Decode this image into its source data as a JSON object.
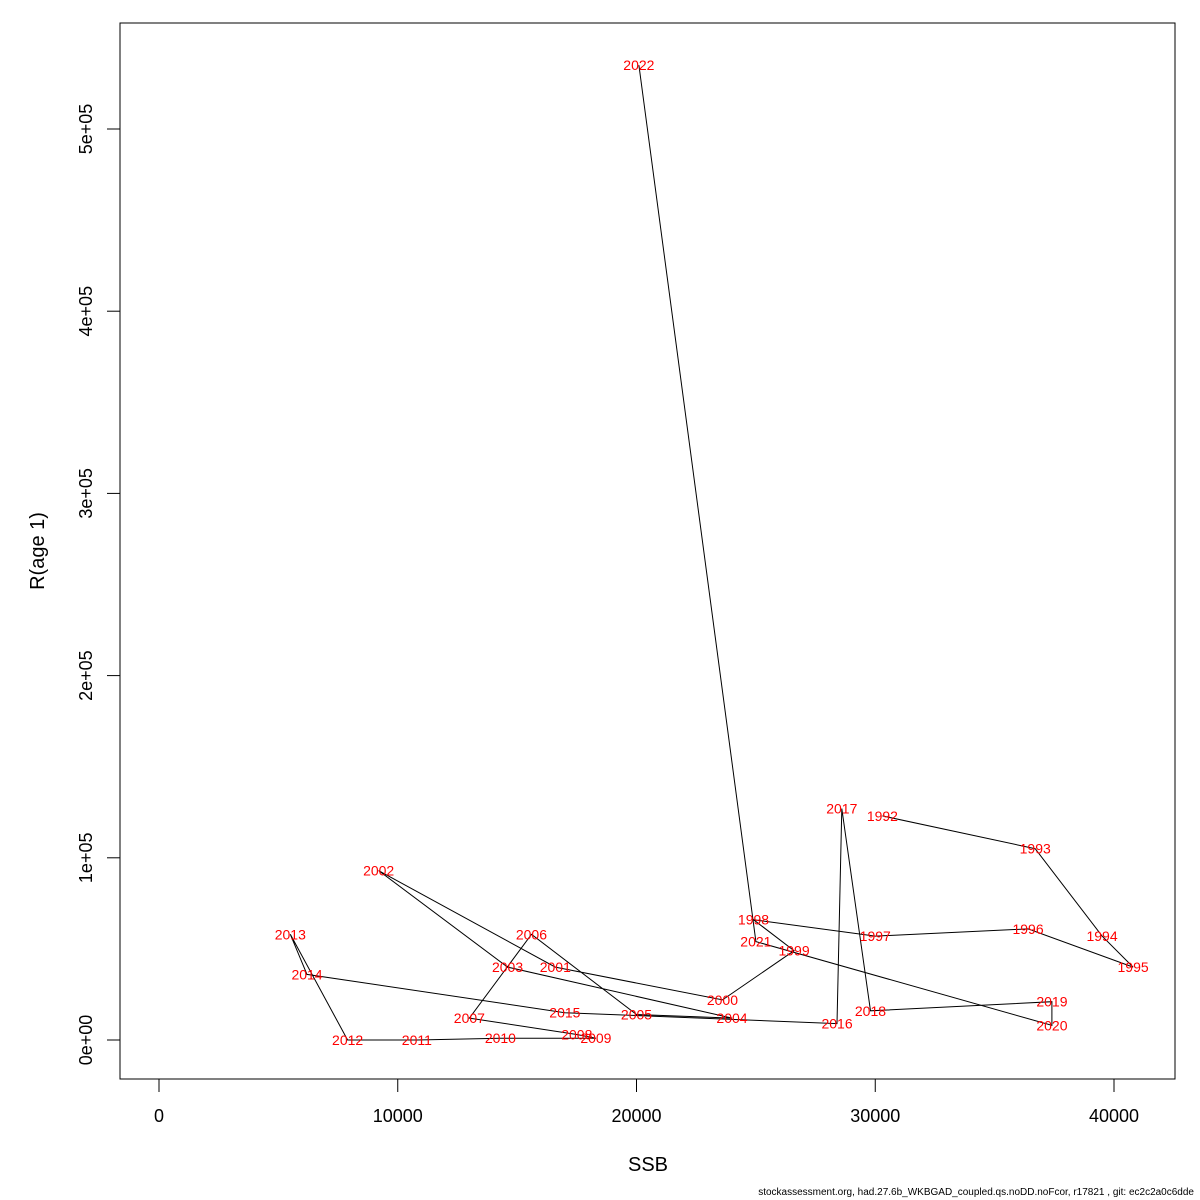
{
  "chart_data": {
    "type": "line",
    "title": "",
    "xlabel": "SSB",
    "ylabel": "R(age 1)",
    "xlim": [
      0,
      42000
    ],
    "ylim": [
      0,
      550000
    ],
    "x_ticks": [
      0,
      10000,
      20000,
      30000,
      40000
    ],
    "x_tick_labels": [
      "0",
      "10000",
      "20000",
      "30000",
      "40000"
    ],
    "y_ticks": [
      0,
      100000,
      200000,
      300000,
      400000,
      500000
    ],
    "y_tick_labels": [
      "0e+00",
      "1e+05",
      "2e+05",
      "3e+05",
      "4e+05",
      "5e+05"
    ],
    "grid": false,
    "line_color": "#000000",
    "label_color": "#ff0000",
    "points": [
      {
        "year": "1992",
        "ssb": 30300,
        "r": 123000
      },
      {
        "year": "1993",
        "ssb": 36700,
        "r": 105000
      },
      {
        "year": "1994",
        "ssb": 39500,
        "r": 57000
      },
      {
        "year": "1995",
        "ssb": 40800,
        "r": 40000
      },
      {
        "year": "1996",
        "ssb": 36400,
        "r": 61000
      },
      {
        "year": "1997",
        "ssb": 30000,
        "r": 57000
      },
      {
        "year": "1998",
        "ssb": 24900,
        "r": 66000
      },
      {
        "year": "1999",
        "ssb": 26600,
        "r": 49000
      },
      {
        "year": "2000",
        "ssb": 23600,
        "r": 22000
      },
      {
        "year": "2001",
        "ssb": 16600,
        "r": 40000
      },
      {
        "year": "2002",
        "ssb": 9200,
        "r": 93000
      },
      {
        "year": "2003",
        "ssb": 14600,
        "r": 40000
      },
      {
        "year": "2004",
        "ssb": 24000,
        "r": 12000
      },
      {
        "year": "2005",
        "ssb": 20000,
        "r": 14000
      },
      {
        "year": "2006",
        "ssb": 15600,
        "r": 58000
      },
      {
        "year": "2007",
        "ssb": 13000,
        "r": 12000
      },
      {
        "year": "2008",
        "ssb": 17500,
        "r": 3000
      },
      {
        "year": "2009",
        "ssb": 18300,
        "r": 1000
      },
      {
        "year": "2010",
        "ssb": 14300,
        "r": 1000
      },
      {
        "year": "2011",
        "ssb": 10800,
        "r": 0
      },
      {
        "year": "2012",
        "ssb": 7900,
        "r": 0
      },
      {
        "year": "2013",
        "ssb": 5500,
        "r": 58000
      },
      {
        "year": "2014",
        "ssb": 6200,
        "r": 36000
      },
      {
        "year": "2015",
        "ssb": 17000,
        "r": 15000
      },
      {
        "year": "2016",
        "ssb": 28400,
        "r": 9000
      },
      {
        "year": "2017",
        "ssb": 28600,
        "r": 127000
      },
      {
        "year": "2018",
        "ssb": 29800,
        "r": 16000
      },
      {
        "year": "2019",
        "ssb": 37400,
        "r": 21000
      },
      {
        "year": "2020",
        "ssb": 37400,
        "r": 8000
      },
      {
        "year": "2021",
        "ssb": 25000,
        "r": 54000
      },
      {
        "year": "2022",
        "ssb": 20100,
        "r": 535000
      }
    ]
  },
  "footer": "stockassessment.org, had.27.6b_WKBGAD_coupled.qs.noDD.noFcor, r17821 , git: ec2c2a0c6dde"
}
